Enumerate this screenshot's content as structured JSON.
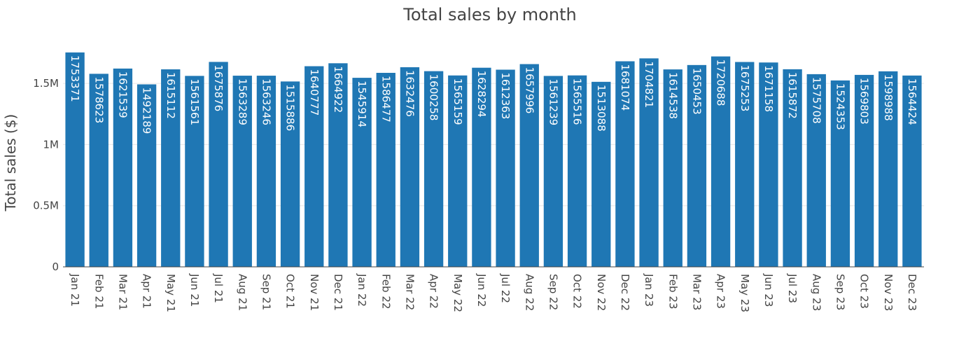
{
  "chart_data": {
    "type": "bar",
    "title": "Total sales by month",
    "xlabel": "",
    "ylabel": "Total sales ($)",
    "ylim": [
      0,
      1850000
    ],
    "yticks": [
      {
        "value": 0,
        "label": "0"
      },
      {
        "value": 500000,
        "label": "0.5M"
      },
      {
        "value": 1000000,
        "label": "1M"
      },
      {
        "value": 1500000,
        "label": "1.5M"
      }
    ],
    "grid": true,
    "legend": "none",
    "bar_color": "#1f77b4",
    "categories": [
      "Jan 21",
      "Feb 21",
      "Mar 21",
      "Apr 21",
      "May 21",
      "Jun 21",
      "Jul 21",
      "Aug 21",
      "Sep 21",
      "Oct 21",
      "Nov 21",
      "Dec 21",
      "Jan 22",
      "Feb 22",
      "Mar 22",
      "Apr 22",
      "May 22",
      "Jun 22",
      "Jul 22",
      "Aug 22",
      "Sep 22",
      "Oct 22",
      "Nov 22",
      "Dec 22",
      "Jan 23",
      "Feb 23",
      "Mar 23",
      "Apr 23",
      "May 23",
      "Jun 23",
      "Jul 23",
      "Aug 23",
      "Sep 23",
      "Oct 23",
      "Nov 23",
      "Dec 23"
    ],
    "values": [
      1753371,
      1578623,
      1621539,
      1492189,
      1615112,
      1561561,
      1675876,
      1563289,
      1563246,
      1515886,
      1640777,
      1664922,
      1545914,
      1586477,
      1632476,
      1600258,
      1565159,
      1628294,
      1612363,
      1657996,
      1561239,
      1565516,
      1513088,
      1681074,
      1704821,
      1614538,
      1650453,
      1720688,
      1675253,
      1671158,
      1615872,
      1575708,
      1524353,
      1569803,
      1598988,
      1564424
    ]
  }
}
